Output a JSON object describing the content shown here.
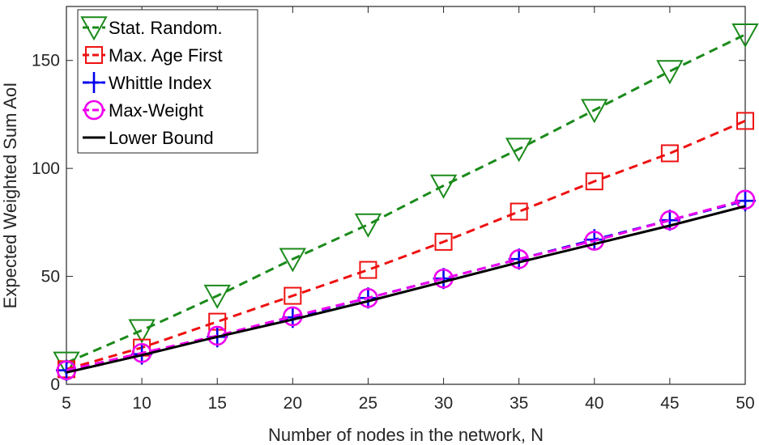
{
  "chart_data": {
    "type": "line",
    "xlabel": "Number of nodes in the network, N",
    "ylabel": "Expected Weighted Sum AoI",
    "xlim": [
      5,
      50
    ],
    "ylim": [
      0,
      175
    ],
    "x": [
      5,
      10,
      15,
      20,
      25,
      30,
      35,
      40,
      45,
      50
    ],
    "x_ticks": [
      5,
      10,
      15,
      20,
      25,
      30,
      35,
      40,
      45,
      50
    ],
    "y_ticks": [
      0,
      50,
      100,
      150
    ],
    "grid": false,
    "legend_position": "top-left",
    "series": [
      {
        "name": "Stat. Random.",
        "color": "#1a8a1a",
        "line_style": "dashed",
        "marker": "triangle-down",
        "values": [
          10,
          25,
          41,
          58,
          74,
          92,
          109,
          127,
          145,
          162
        ]
      },
      {
        "name": "Max. Age First",
        "color": "#ee1111",
        "line_style": "dashed",
        "marker": "square",
        "values": [
          7,
          17,
          29,
          41,
          53,
          66,
          80,
          94,
          107,
          122
        ]
      },
      {
        "name": "Whittle Index",
        "color": "#0000ee",
        "line_style": "dashed",
        "marker": "plus",
        "values": [
          6.5,
          14,
          22,
          31,
          40,
          49,
          58,
          67,
          76,
          85
        ]
      },
      {
        "name": "Max-Weight",
        "color": "#ee00ee",
        "line_style": "dashed",
        "marker": "circle",
        "values": [
          6.5,
          14.5,
          22.5,
          31.5,
          40,
          49,
          58,
          66.5,
          76,
          85.5
        ]
      },
      {
        "name": "Lower Bound",
        "color": "#000000",
        "line_style": "solid",
        "marker": "none",
        "values": [
          5.5,
          13.5,
          22,
          30,
          38.5,
          47.5,
          56.5,
          65,
          73.5,
          82.5
        ]
      }
    ]
  }
}
